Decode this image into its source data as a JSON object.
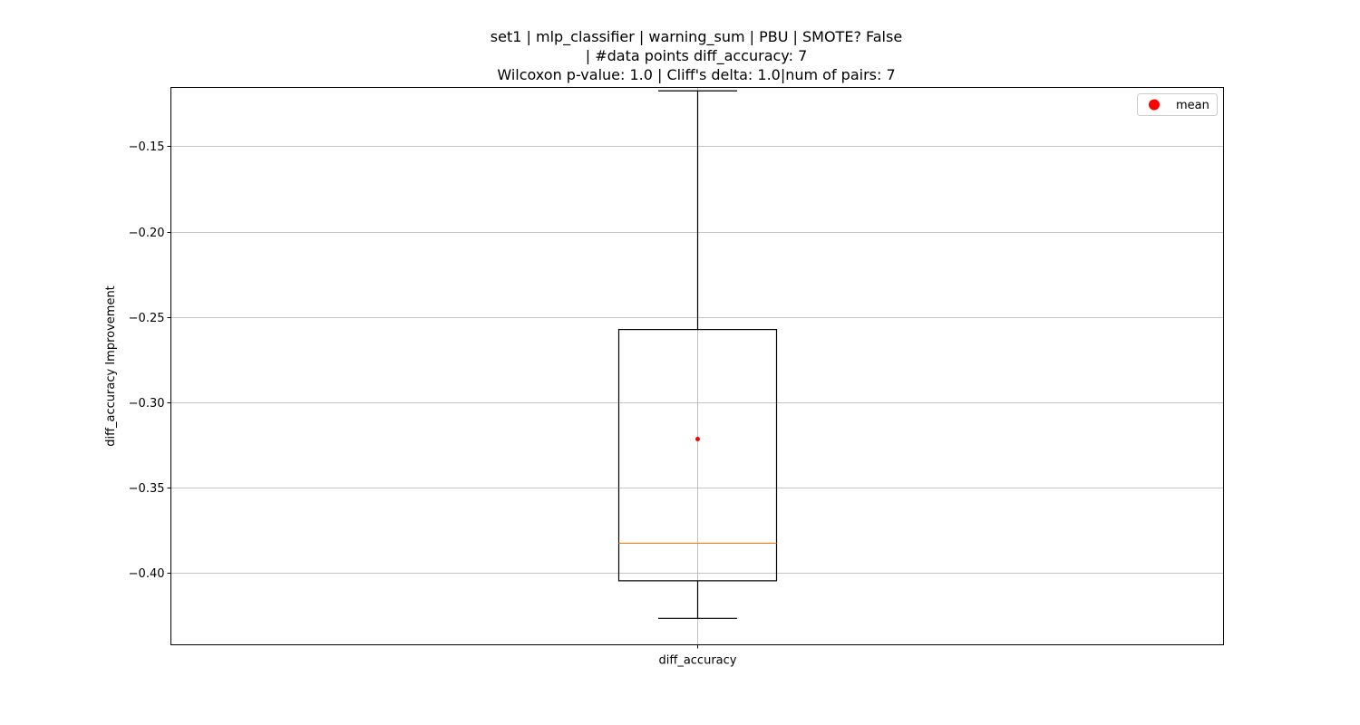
{
  "chart_data": {
    "type": "box",
    "title_lines": [
      "set1 | mlp_classifier | warning_sum | PBU | SMOTE? False",
      "| #data points diff_accuracy: 7",
      "Wilcoxon p-value: 1.0 | Cliff's delta: 1.0|num of pairs: 7"
    ],
    "xlabel": "",
    "ylabel": "diff_accuracy Improvement",
    "categories": [
      "diff_accuracy"
    ],
    "ylim": [
      -0.442,
      -0.1155
    ],
    "yticks": [
      -0.15,
      -0.2,
      -0.25,
      -0.3,
      -0.35,
      -0.4
    ],
    "ytick_labels": [
      "−0.15",
      "−0.20",
      "−0.25",
      "−0.30",
      "−0.35",
      "−0.40"
    ],
    "grid": true,
    "boxes": [
      {
        "category": "diff_accuracy",
        "whisker_low": -0.4265,
        "q1": -0.4045,
        "median": -0.3825,
        "q3": -0.2573,
        "whisker_high": -0.1175,
        "mean": -0.3215
      }
    ],
    "legend": {
      "placement": "top-right",
      "entries": [
        "mean"
      ]
    },
    "colors": {
      "box": "#000000",
      "median": "#ff7f0e",
      "mean": "#ff0000",
      "grid": "#b0b0b0"
    }
  }
}
